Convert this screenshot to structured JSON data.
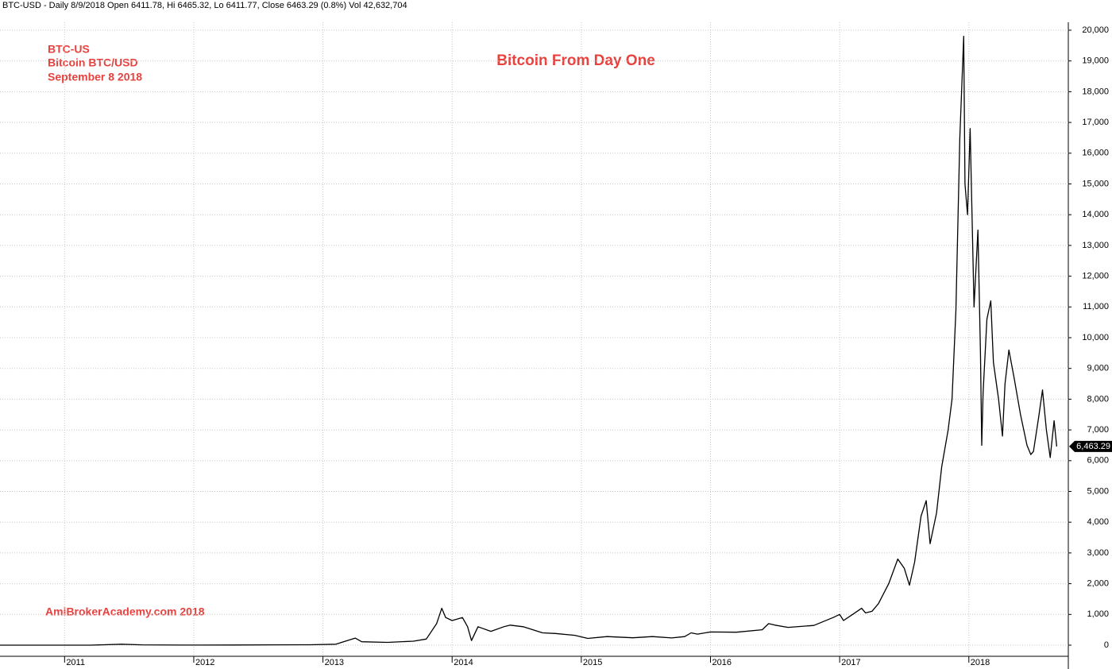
{
  "chart_data": {
    "type": "line",
    "header": "BTC-USD - Daily 8/9/2018 Open 6411.78, Hi 6465.32, Lo 6411.77, Close 6463.29 (0.8%) Vol 42,632,704",
    "title": "Bitcoin From Day One",
    "annotations": [
      "BTC-US",
      "Bitcoin BTC/USD",
      "September 8 2018"
    ],
    "footer_note": "AmiBrokerAcademy.com  2018",
    "x": [
      2010.5,
      2010.9,
      2011.2,
      2011.44,
      2011.6,
      2011.9,
      2012.3,
      2012.6,
      2012.9,
      2013.1,
      2013.25,
      2013.3,
      2013.5,
      2013.7,
      2013.8,
      2013.88,
      2013.92,
      2013.95,
      2014.0,
      2014.08,
      2014.12,
      2014.15,
      2014.2,
      2014.3,
      2014.4,
      2014.45,
      2014.55,
      2014.7,
      2014.8,
      2014.95,
      2015.05,
      2015.2,
      2015.4,
      2015.55,
      2015.7,
      2015.8,
      2015.85,
      2015.9,
      2016.0,
      2016.2,
      2016.4,
      2016.45,
      2016.5,
      2016.6,
      2016.8,
      2016.95,
      2017.0,
      2017.03,
      2017.1,
      2017.17,
      2017.2,
      2017.25,
      2017.3,
      2017.38,
      2017.45,
      2017.5,
      2017.54,
      2017.58,
      2017.63,
      2017.67,
      2017.7,
      2017.75,
      2017.79,
      2017.84,
      2017.87,
      2017.9,
      2017.93,
      2017.96,
      2017.97,
      2017.99,
      2018.01,
      2018.04,
      2018.07,
      2018.09,
      2018.1,
      2018.11,
      2018.14,
      2018.17,
      2018.19,
      2018.23,
      2018.26,
      2018.28,
      2018.31,
      2018.35,
      2018.4,
      2018.45,
      2018.48,
      2018.5,
      2018.54,
      2018.57,
      2018.6,
      2018.63,
      2018.66,
      2018.68
    ],
    "series": [
      {
        "name": "BTC-USD",
        "color": "#000000",
        "values": [
          0.07,
          0.3,
          1,
          30,
          10,
          3,
          5,
          10,
          13,
          30,
          230,
          110,
          90,
          130,
          200,
          700,
          1200,
          900,
          800,
          900,
          600,
          150,
          600,
          450,
          600,
          650,
          600,
          400,
          380,
          320,
          220,
          280,
          240,
          280,
          235,
          280,
          400,
          360,
          430,
          420,
          500,
          700,
          650,
          580,
          640,
          900,
          1000,
          800,
          1000,
          1200,
          1050,
          1100,
          1350,
          2000,
          2800,
          2500,
          1950,
          2700,
          4200,
          4700,
          3300,
          4300,
          5800,
          7000,
          8000,
          10900,
          16500,
          19800,
          15000,
          14000,
          16800,
          11000,
          13500,
          9500,
          6500,
          8200,
          10600,
          11200,
          9200,
          8000,
          6800,
          8500,
          9600,
          8700,
          7500,
          6500,
          6200,
          6300,
          7400,
          8300,
          7000,
          6100,
          7300,
          6463.29
        ]
      }
    ],
    "xlim": [
      2010.5,
      2018.77
    ],
    "xticks": [
      2011,
      2012,
      2013,
      2014,
      2015,
      2016,
      2017,
      2018
    ],
    "ylim": [
      0,
      20000
    ],
    "yticks": [
      0,
      {
        "value": 1000,
        "label": "1,000"
      },
      {
        "value": 2000,
        "label": "2,000"
      },
      {
        "value": 3000,
        "label": "3,000"
      },
      {
        "value": 4000,
        "label": "4,000"
      },
      {
        "value": 5000,
        "label": "5,000"
      },
      {
        "value": 6000,
        "label": "6,000"
      },
      {
        "value": 7000,
        "label": "7,000"
      },
      {
        "value": 8000,
        "label": "8,000"
      },
      {
        "value": 9000,
        "label": "9,000"
      },
      {
        "value": 10000,
        "label": "10,000"
      },
      {
        "value": 11000,
        "label": "11,000"
      },
      {
        "value": 12000,
        "label": "12,000"
      },
      {
        "value": 13000,
        "label": "13,000"
      },
      {
        "value": 14000,
        "label": "14,000"
      },
      {
        "value": 15000,
        "label": "15,000"
      },
      {
        "value": 16000,
        "label": "16,000"
      },
      {
        "value": 17000,
        "label": "17,000"
      },
      {
        "value": 18000,
        "label": "18,000"
      },
      {
        "value": 19000,
        "label": "19,000"
      },
      {
        "value": 20000,
        "label": "20,000"
      }
    ],
    "close_marker": {
      "value": 6463.29,
      "label": "6,463.29"
    },
    "grid": true
  }
}
